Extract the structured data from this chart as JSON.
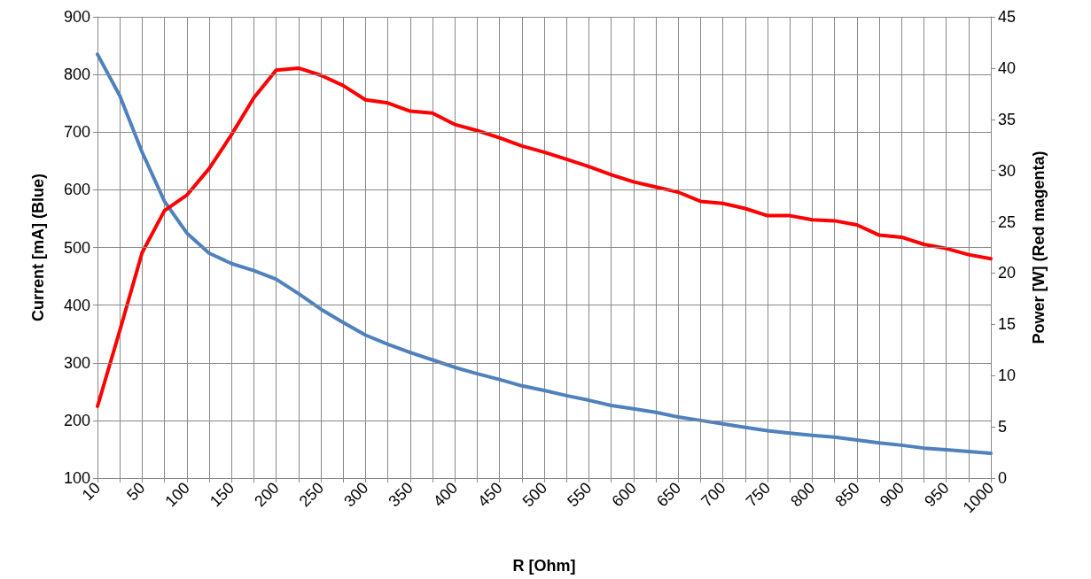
{
  "chart_data": {
    "type": "line",
    "xlabel": "R [Ohm]",
    "ylabel": "Current [mA] (Blue)",
    "y2label": "Power [W] (Red magenta)",
    "categories": [
      "10",
      null,
      "50",
      null,
      "100",
      null,
      "150",
      null,
      "200",
      null,
      "250",
      null,
      "300",
      null,
      "350",
      null,
      "400",
      null,
      "450",
      null,
      "500",
      null,
      "550",
      null,
      "600",
      null,
      "650",
      null,
      "700",
      null,
      "750",
      null,
      "800",
      null,
      "850",
      null,
      "900",
      null,
      "950",
      null,
      "1000"
    ],
    "series": [
      {
        "color": "#4f81bd",
        "values": [
          835,
          763,
          665,
          580,
          525,
          490,
          472,
          460,
          445,
          420,
          393,
          370,
          348,
          332,
          318,
          305,
          292,
          281,
          271,
          260,
          252,
          243,
          235,
          226,
          220,
          214,
          206,
          200,
          194,
          188,
          182,
          178,
          174,
          171,
          166,
          161,
          157,
          152,
          149,
          146,
          143
        ]
      },
      {
        "color": "#ff0000",
        "axis": "y2",
        "values": [
          7.0,
          14.4,
          22.0,
          26.1,
          27.6,
          30.2,
          33.5,
          37.1,
          39.8,
          40.0,
          39.3,
          38.3,
          36.9,
          36.6,
          35.8,
          35.6,
          34.5,
          33.9,
          33.2,
          32.4,
          31.8,
          31.1,
          30.4,
          29.6,
          28.9,
          28.4,
          27.9,
          27.0,
          26.8,
          26.3,
          25.6,
          25.6,
          25.2,
          25.1,
          24.7,
          23.7,
          23.5,
          22.8,
          22.4,
          21.8,
          21.4
        ]
      }
    ],
    "ylim": [
      100,
      900
    ],
    "yticks": [
      100,
      200,
      300,
      400,
      500,
      600,
      700,
      800,
      900
    ],
    "y2lim": [
      0,
      45
    ],
    "y2ticks": [
      0,
      5,
      10,
      15,
      20,
      25,
      30,
      35,
      40,
      45
    ],
    "grid": true,
    "marker": "none",
    "line_style": "solid"
  }
}
